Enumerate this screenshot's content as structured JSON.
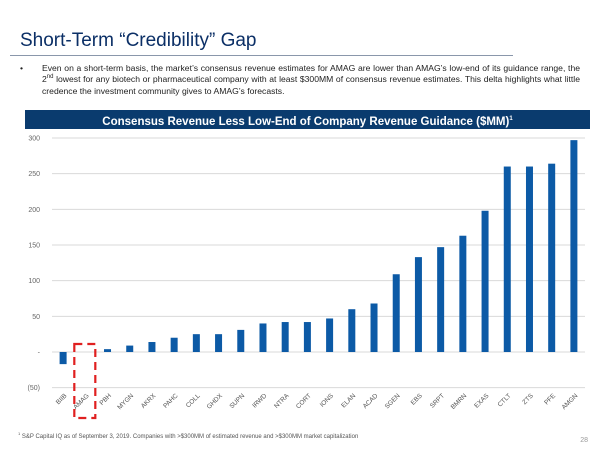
{
  "slide": {
    "title": "Short-Term “Credibility” Gap",
    "bullet": {
      "marker": "•",
      "text_before_sup": "Even on a short-term basis, the market’s consensus revenue estimates for AMAG are lower than AMAG’s low-end of its guidance range, the 2",
      "sup": "nd",
      "text_after_sup": " lowest for any biotech or pharmaceutical company with at least $300MM of consensus revenue estimates.  This delta highlights what little credence the investment community gives to AMAG’s forecasts."
    },
    "chart_header": "Consensus Revenue Less Low-End of Company Revenue Guidance ($MM)",
    "chart_header_sup": "1",
    "footnote_sup": "1",
    "footnote": " S&P Capital IQ as of September 3, 2019.  Companies with >$300MM of estimated revenue and >$300MM market capitalization",
    "page_number": "28",
    "colors": {
      "title": "#0b2f66",
      "header_bg": "#0a3b6e",
      "bar": "#0c5aa6",
      "highlight": "#e02020",
      "grid": "#d9d9d9"
    }
  },
  "chart_data": {
    "type": "bar",
    "title": "Consensus Revenue Less Low-End of Company Revenue Guidance ($MM)",
    "xlabel": "",
    "ylabel": "",
    "ylim": [
      -50,
      300
    ],
    "yticks": [
      -50,
      0,
      50,
      100,
      150,
      200,
      250,
      300
    ],
    "ytick_labels": [
      "(50)",
      "-",
      "50",
      "100",
      "150",
      "200",
      "250",
      "300"
    ],
    "grid": true,
    "highlighted_category": "AMAG",
    "categories": [
      "BIIB",
      "AMAG",
      "PBH",
      "MYGN",
      "AKRX",
      "PAHC",
      "COLL",
      "GHDX",
      "SUPN",
      "IRWD",
      "NTRA",
      "CORT",
      "IONS",
      "ELAN",
      "ACAD",
      "SGEN",
      "EBS",
      "SRPT",
      "BMRN",
      "EXAS",
      "CTLT",
      "ZTS",
      "PFE",
      "AMGN"
    ],
    "values": [
      -17,
      0,
      4,
      9,
      14,
      20,
      25,
      25,
      31,
      40,
      42,
      42,
      47,
      60,
      68,
      109,
      133,
      147,
      163,
      198,
      260,
      260,
      264,
      297
    ]
  }
}
